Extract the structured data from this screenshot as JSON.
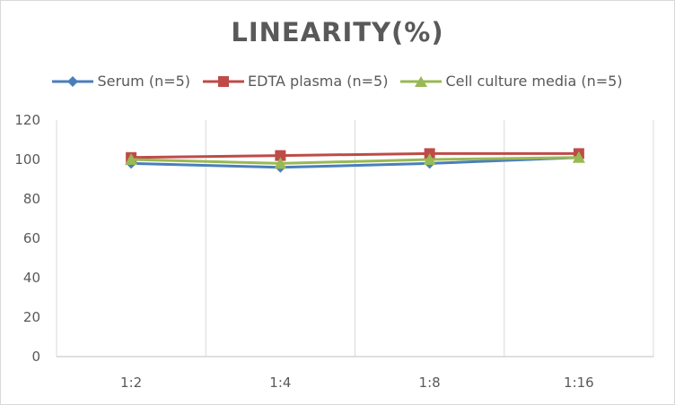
{
  "chart_data": {
    "type": "line",
    "title": "LINEARITY(%)",
    "xlabel": "",
    "ylabel": "",
    "categories": [
      "1:2",
      "1:4",
      "1:8",
      "1:16"
    ],
    "ylim": [
      0,
      120
    ],
    "yticks": [
      "0",
      "20",
      "40",
      "60",
      "80",
      "100",
      "120"
    ],
    "grid": "vertical",
    "legend_position": "top",
    "series": [
      {
        "name": "Serum (n=5)",
        "values": [
          98,
          96,
          98,
          101
        ],
        "color": "#4a7ebb",
        "marker": "diamond"
      },
      {
        "name": "EDTA plasma (n=5)",
        "values": [
          101,
          102,
          103,
          103
        ],
        "color": "#be4b48",
        "marker": "square"
      },
      {
        "name": "Cell culture media (n=5)",
        "values": [
          100,
          98,
          100,
          101
        ],
        "color": "#98b954",
        "marker": "triangle"
      }
    ]
  }
}
